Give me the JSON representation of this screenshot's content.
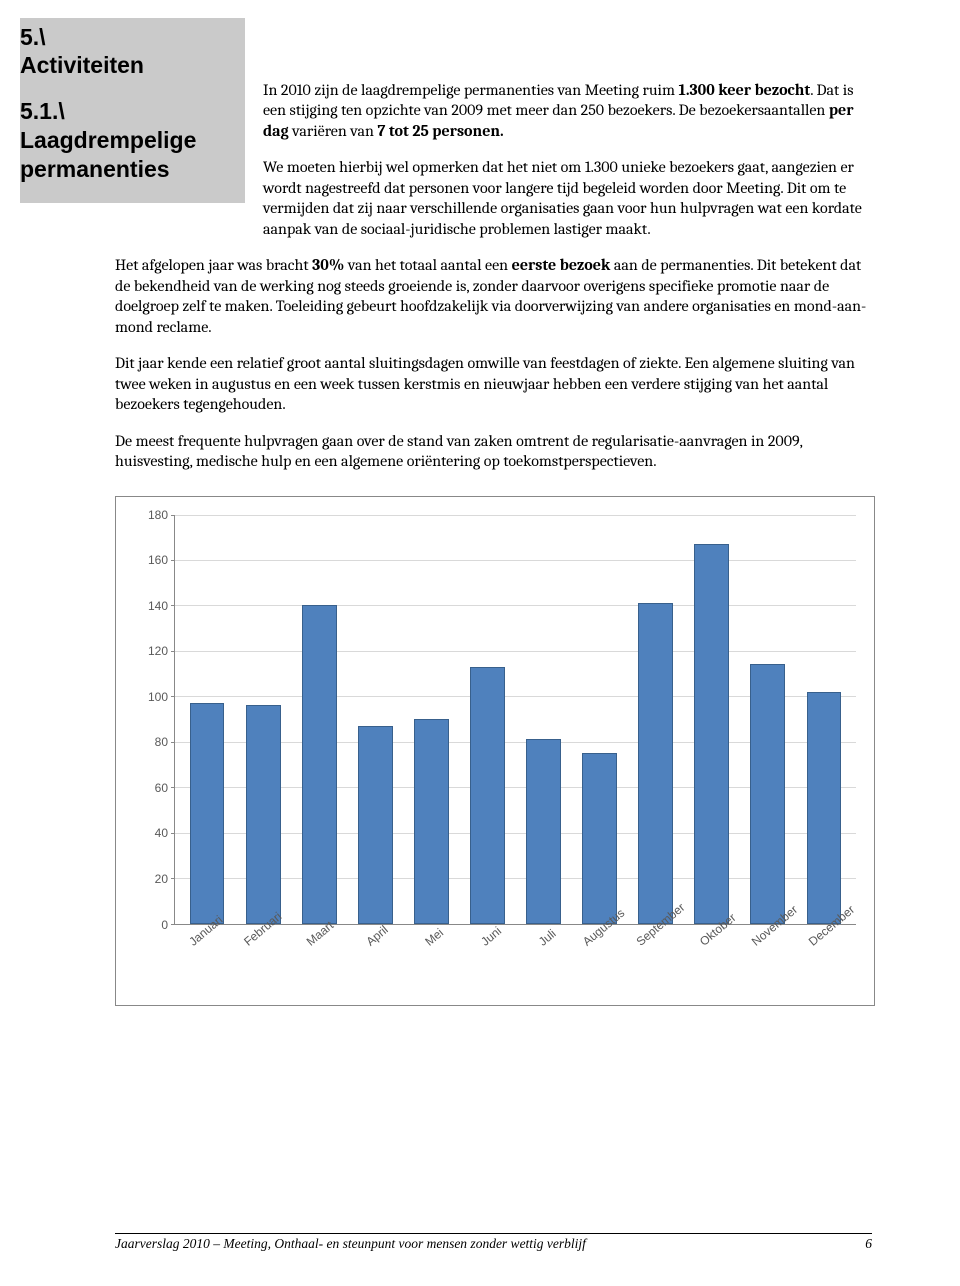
{
  "sidebar": {
    "section_number": "5.\\",
    "section_title": "Activiteiten",
    "sub_number": "5.1.\\",
    "sub_title_line1": "Laagdrempelige",
    "sub_title_line2": "permanenties"
  },
  "paragraphs": {
    "p1_a": "In 2010 zijn de laagdrempelige permanenties van Meeting ruim ",
    "p1_b": "1.300 keer bezocht",
    "p1_c": ". Dat is een stijging ten opzichte van 2009 met meer dan 250 bezoekers. De bezoekersaantallen ",
    "p1_d": "per dag",
    "p1_e": " variëren van ",
    "p1_f": "7 tot 25 personen.",
    "p2": "We moeten hierbij wel opmerken dat het niet om 1.300 unieke bezoekers gaat, aangezien er wordt nagestreefd dat personen voor langere tijd begeleid worden door Meeting. Dit om te vermijden dat zij naar verschillende organisaties gaan voor hun hulpvragen wat een kordate aanpak van de sociaal-juridische problemen lastiger maakt.",
    "p3_a": "Het afgelopen jaar was bracht ",
    "p3_b": "30%",
    "p3_c": " van het totaal aantal een ",
    "p3_d": "eerste bezoek",
    "p3_e": " aan de permanenties. Dit betekent dat de bekendheid van de werking nog steeds groeiende is, zonder daarvoor overigens specifieke promotie naar de doelgroep zelf te maken. Toeleiding gebeurt hoofdzakelijk via doorverwijzing van andere organisaties en mond-aan-mond reclame.",
    "p4": "Dit jaar kende een relatief groot aantal sluitingsdagen omwille van feestdagen of ziekte. Een algemene sluiting van twee weken in augustus en een week tussen kerstmis en nieuwjaar hebben een verdere stijging van het aantal bezoekers tegengehouden.",
    "p5": "De meest frequente hulpvragen gaan over de stand van zaken omtrent de regularisatie-aanvragen in 2009, huisvesting, medische hulp en een algemene oriëntering op toekomstperspectieven."
  },
  "chart": {
    "type": "bar",
    "categories": [
      "Januari",
      "Februari",
      "Maart",
      "April",
      "Mei",
      "Juni",
      "Juli",
      "Augustus",
      "September",
      "Oktober",
      "November",
      "December"
    ],
    "values": [
      97,
      96,
      140,
      87,
      90,
      113,
      81,
      75,
      141,
      167,
      114,
      102
    ],
    "bar_fill": "#4f81bd",
    "bar_border": "#38608c",
    "grid_color": "#d9d9d9",
    "axis_color": "#888888",
    "label_color": "#595959",
    "ymax": 180,
    "ytick_step": 20,
    "label_fontsize": 12,
    "background": "#ffffff"
  },
  "footer": {
    "text": "Jaarverslag 2010 – Meeting, Onthaal- en steunpunt voor mensen zonder wettig verblijf",
    "page_number": "6"
  }
}
